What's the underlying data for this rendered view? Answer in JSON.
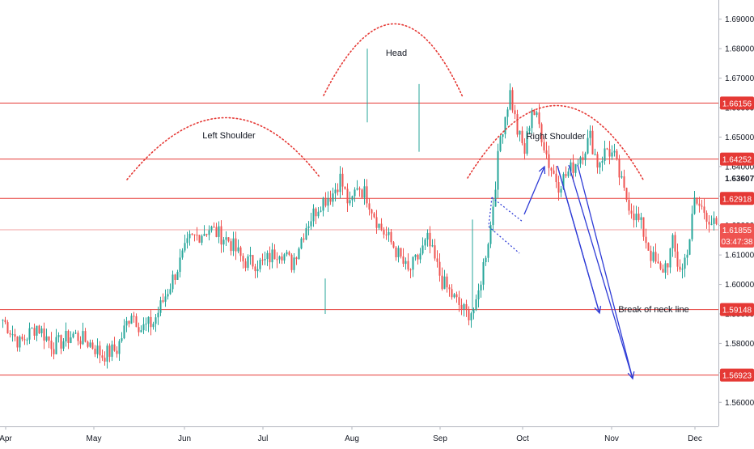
{
  "chart_data": {
    "type": "candlestick",
    "instrument": "",
    "title": "",
    "xlabel": "",
    "ylabel": "",
    "ylim": [
      1.555,
      1.695
    ],
    "x_ticks": [
      "Apr",
      "May",
      "Jun",
      "Jul",
      "Aug",
      "Sep",
      "Oct",
      "Nov",
      "Dec"
    ],
    "y_ticks": [
      "1.56000",
      "1.57000",
      "1.58000",
      "1.59000",
      "1.60000",
      "1.61000",
      "1.62000",
      "1.63000",
      "1.64000",
      "1.65000",
      "1.66000",
      "1.67000",
      "1.68000",
      "1.69000"
    ],
    "y_tick_values": [
      1.56,
      1.57,
      1.58,
      1.59,
      1.6,
      1.61,
      1.62,
      1.63,
      1.64,
      1.65,
      1.66,
      1.67,
      1.68,
      1.69
    ],
    "levels": [
      {
        "value": 1.66156,
        "label": "1.66156",
        "color": "#e53935"
      },
      {
        "value": 1.64252,
        "label": "1.64252",
        "color": "#e53935"
      },
      {
        "value": 1.62918,
        "label": "1.62918",
        "color": "#e53935"
      },
      {
        "value": 1.59148,
        "label": "1.59148",
        "color": "#e53935"
      },
      {
        "value": 1.56923,
        "label": "1.56923",
        "color": "#e53935"
      }
    ],
    "current_price": {
      "value": 1.61855,
      "label": "1.61855",
      "countdown": "03:47:38",
      "color": "#ef5350"
    },
    "marker_price": {
      "value": 1.63607,
      "label": "1.63607"
    },
    "annotations": {
      "left_shoulder": "Left Shoulder",
      "head": "Head",
      "right_shoulder": "Right Shoulder",
      "neck_break": "Break of neck line"
    },
    "colors": {
      "up": "#26a69a",
      "down": "#ef5350",
      "levels": "#e53935",
      "arrows": "#2e3bd6"
    },
    "waypoints": [
      [
        1.588,
        1
      ],
      [
        1.58,
        8
      ],
      [
        1.586,
        15
      ],
      [
        1.579,
        22
      ],
      [
        1.583,
        30
      ],
      [
        1.58,
        37
      ],
      [
        1.576,
        42
      ],
      [
        1.578,
        48
      ],
      [
        1.591,
        54
      ],
      [
        1.585,
        58
      ],
      [
        1.587,
        63
      ],
      [
        1.6,
        70
      ],
      [
        1.615,
        78
      ],
      [
        1.619,
        86
      ],
      [
        1.615,
        94
      ],
      [
        1.608,
        100
      ],
      [
        1.607,
        108
      ],
      [
        1.612,
        115
      ],
      [
        1.607,
        120
      ],
      [
        1.62,
        126
      ],
      [
        1.628,
        132
      ],
      [
        1.631,
        137
      ],
      [
        1.636,
        140
      ],
      [
        1.626,
        144
      ],
      [
        1.634,
        147
      ],
      [
        1.63,
        151
      ],
      [
        1.62,
        156
      ],
      [
        1.613,
        162
      ],
      [
        1.604,
        168
      ],
      [
        1.609,
        172
      ],
      [
        1.615,
        176
      ],
      [
        1.601,
        182
      ],
      [
        1.594,
        188
      ],
      [
        1.59,
        192
      ],
      [
        1.592,
        196
      ],
      [
        1.602,
        198
      ],
      [
        1.62,
        202
      ],
      [
        1.65,
        206
      ],
      [
        1.665,
        210
      ],
      [
        1.652,
        213
      ],
      [
        1.645,
        216
      ],
      [
        1.66,
        219
      ],
      [
        1.654,
        222
      ],
      [
        1.641,
        226
      ],
      [
        1.634,
        230
      ],
      [
        1.639,
        235
      ],
      [
        1.645,
        240
      ],
      [
        1.65,
        243
      ],
      [
        1.641,
        246
      ],
      [
        1.646,
        250
      ],
      [
        1.643,
        253
      ],
      [
        1.631,
        257
      ],
      [
        1.624,
        261
      ],
      [
        1.62,
        264
      ],
      [
        1.61,
        268
      ],
      [
        1.604,
        272
      ],
      [
        1.608,
        275
      ],
      [
        1.614,
        277
      ],
      [
        1.607,
        279
      ],
      [
        1.605,
        281
      ],
      [
        1.616,
        284
      ],
      [
        1.628,
        286
      ],
      [
        1.625,
        290
      ],
      [
        1.62,
        294
      ],
      [
        1.617,
        297
      ],
      [
        1.621,
        300
      ]
    ]
  }
}
